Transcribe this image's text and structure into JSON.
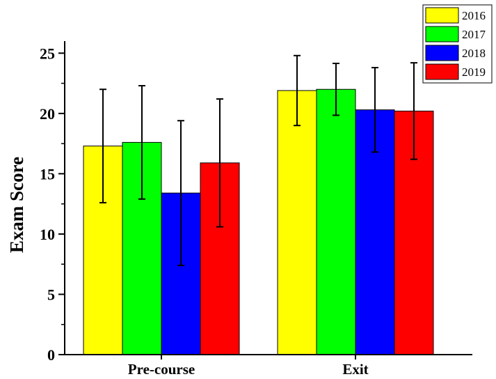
{
  "chart_data": {
    "type": "bar",
    "title": "",
    "xlabel": "",
    "ylabel": "Exam Score",
    "ylim": [
      0,
      26
    ],
    "yticks": [
      0,
      5,
      10,
      15,
      20,
      25
    ],
    "categories": [
      "Pre-course",
      "Exit"
    ],
    "series": [
      {
        "name": "2016",
        "color": "#ffff00",
        "values": [
          17.3,
          21.9
        ],
        "error": [
          4.7,
          2.9
        ]
      },
      {
        "name": "2017",
        "color": "#00ff00",
        "values": [
          17.6,
          22.0
        ],
        "error": [
          4.7,
          2.15
        ]
      },
      {
        "name": "2018",
        "color": "#0000ff",
        "values": [
          13.4,
          20.3
        ],
        "error": [
          6.0,
          3.5
        ]
      },
      {
        "name": "2019",
        "color": "#ff0000",
        "values": [
          15.9,
          20.2
        ],
        "error": [
          5.3,
          4.0
        ]
      }
    ],
    "grid": false,
    "legend_position": "top-right",
    "error_bars": true
  }
}
